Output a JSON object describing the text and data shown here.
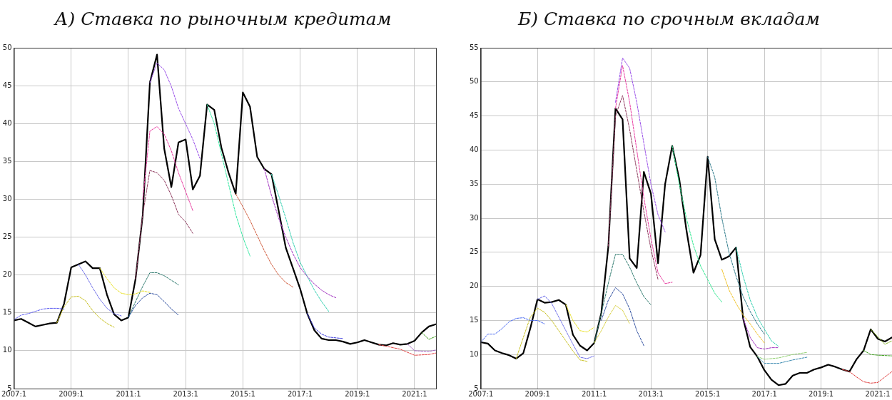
{
  "chart_data": [
    {
      "type": "line",
      "title": "А) Ставка по рыночным кредитам",
      "grid": true,
      "line_style": "solid",
      "marker": "none",
      "xlim": [
        "2007-01",
        "2021-10"
      ],
      "ylim": [
        5,
        50
      ],
      "xticks": [
        {
          "value": "2007-01",
          "label": "2007:1"
        },
        {
          "value": "2009-01",
          "label": "2009:1"
        },
        {
          "value": "2011-01",
          "label": "2011:1"
        },
        {
          "value": "2013-01",
          "label": "2013:1"
        },
        {
          "value": "2015-01",
          "label": "2015:1"
        },
        {
          "value": "2017-01",
          "label": "2017:1"
        },
        {
          "value": "2019-01",
          "label": "2019:1"
        },
        {
          "value": "2021-01",
          "label": "2021:1"
        }
      ],
      "yticks": [
        5,
        10,
        15,
        20,
        25,
        30,
        35,
        40,
        45,
        50
      ],
      "x": [
        "2007-01",
        "2007-04",
        "2007-07",
        "2007-10",
        "2008-01",
        "2008-04",
        "2008-07",
        "2008-10",
        "2009-01",
        "2009-04",
        "2009-07",
        "2009-10",
        "2010-01",
        "2010-04",
        "2010-07",
        "2010-10",
        "2011-01",
        "2011-04",
        "2011-07",
        "2011-10",
        "2012-01",
        "2012-04",
        "2012-07",
        "2012-10",
        "2013-01",
        "2013-04",
        "2013-07",
        "2013-10",
        "2014-01",
        "2014-04",
        "2014-07",
        "2014-10",
        "2015-01",
        "2015-04",
        "2015-07",
        "2015-10",
        "2016-01",
        "2016-04",
        "2016-07",
        "2016-10",
        "2017-01",
        "2017-04",
        "2017-07",
        "2017-10",
        "2018-01",
        "2018-04",
        "2018-07",
        "2018-10",
        "2019-01",
        "2019-04",
        "2019-07",
        "2019-10",
        "2020-01",
        "2020-04",
        "2020-07",
        "2020-10",
        "2021-01",
        "2021-04",
        "2021-07",
        "2021-10"
      ],
      "series": [
        {
          "color": "#5a5af0",
          "line_style": "dashed",
          "x": [
            "2007-01",
            "2007-04",
            "2007-07",
            "2007-10",
            "2008-01",
            "2008-04",
            "2008-07",
            "2008-10"
          ],
          "values": [
            14.1,
            14.7,
            14.9,
            15.2,
            15.5,
            15.6,
            15.6,
            15.5
          ]
        },
        {
          "color": "#c8c020",
          "line_style": "dashed",
          "x": [
            "2008-07",
            "2008-10",
            "2009-01",
            "2009-04",
            "2009-07",
            "2009-10",
            "2010-01",
            "2010-04",
            "2010-07"
          ],
          "values": [
            13.7,
            15.8,
            17.1,
            17.2,
            16.6,
            15.3,
            14.3,
            13.6,
            13.1
          ]
        },
        {
          "color": "#6a6ae8",
          "line_style": "dashed",
          "x": [
            "2009-04",
            "2009-07",
            "2009-10",
            "2010-01",
            "2010-04",
            "2010-07",
            "2010-10"
          ],
          "values": [
            21.4,
            20.0,
            18.3,
            16.8,
            15.6,
            14.9,
            14.6
          ]
        },
        {
          "color": "#e8e020",
          "line_style": "dashed",
          "x": [
            "2010-01",
            "2010-04",
            "2010-07",
            "2010-10",
            "2011-01",
            "2011-04",
            "2011-07",
            "2011-10"
          ],
          "values": [
            20.9,
            19.5,
            18.3,
            17.6,
            17.4,
            17.5,
            17.9,
            17.7
          ]
        },
        {
          "color": "#3050a0",
          "line_style": "dashed",
          "x": [
            "2011-01",
            "2011-04",
            "2011-07",
            "2011-10",
            "2012-01",
            "2012-04",
            "2012-07",
            "2012-10"
          ],
          "values": [
            14.4,
            16.0,
            17.0,
            17.6,
            17.4,
            16.5,
            15.5,
            14.7
          ]
        },
        {
          "color": "#2e7a6e",
          "line_style": "dashed",
          "x": [
            "2011-01",
            "2011-04",
            "2011-07",
            "2011-10",
            "2012-01",
            "2012-04",
            "2012-07",
            "2012-10"
          ],
          "values": [
            14.4,
            16.5,
            18.5,
            20.3,
            20.3,
            19.9,
            19.3,
            18.7
          ]
        },
        {
          "color": "#8e3a5e",
          "line_style": "dashed",
          "x": [
            "2011-04",
            "2011-07",
            "2011-10",
            "2012-01",
            "2012-04",
            "2012-07",
            "2012-10",
            "2013-01",
            "2013-04"
          ],
          "values": [
            19.5,
            28.0,
            33.8,
            33.5,
            32.5,
            30.5,
            28.0,
            27.0,
            25.5
          ]
        },
        {
          "color": "#e83aa0",
          "line_style": "dashed",
          "x": [
            "2011-07",
            "2011-10",
            "2012-01",
            "2012-04",
            "2012-07",
            "2012-10",
            "2013-01",
            "2013-04"
          ],
          "values": [
            30.0,
            39.0,
            39.6,
            38.6,
            36.4,
            33.5,
            31.0,
            28.5
          ]
        },
        {
          "color": "#9a50e8",
          "line_style": "dashed",
          "x": [
            "2011-10",
            "2012-01",
            "2012-04",
            "2012-07",
            "2012-10",
            "2013-04",
            "2013-07"
          ],
          "values": [
            45.4,
            48.0,
            47.1,
            44.9,
            42.0,
            37.9,
            35.4
          ]
        },
        {
          "color": "#30e8a0",
          "line_style": "dashed",
          "x": [
            "2013-10",
            "2014-01",
            "2014-04",
            "2014-07",
            "2014-10",
            "2015-01",
            "2015-04"
          ],
          "values": [
            42.5,
            40.0,
            36.0,
            32.0,
            28.0,
            25.0,
            22.5
          ]
        },
        {
          "color": "#d05a3a",
          "line_style": "dashed",
          "x": [
            "2014-10",
            "2015-01",
            "2015-04",
            "2015-07",
            "2015-10",
            "2016-01",
            "2016-04",
            "2016-07",
            "2016-10"
          ],
          "values": [
            30.7,
            29.0,
            27.2,
            25.2,
            23.2,
            21.4,
            20.0,
            19.0,
            18.4
          ]
        },
        {
          "color": "#a030c0",
          "line_style": "dashed",
          "x": [
            "2015-10",
            "2016-01",
            "2016-04",
            "2016-07",
            "2016-10",
            "2017-01",
            "2017-04",
            "2017-07",
            "2017-10",
            "2018-01",
            "2018-04"
          ],
          "values": [
            34.0,
            30.5,
            27.5,
            25.0,
            22.8,
            21.0,
            19.8,
            18.8,
            18.0,
            17.4,
            17.0
          ]
        },
        {
          "color": "#30d0b0",
          "line_style": "dashed",
          "x": [
            "2016-01",
            "2016-04",
            "2016-07",
            "2016-10",
            "2017-01",
            "2017-04",
            "2017-07",
            "2017-10",
            "2018-01"
          ],
          "values": [
            33.3,
            30.5,
            27.5,
            24.3,
            21.7,
            19.8,
            18.0,
            16.5,
            15.2
          ]
        },
        {
          "color": "#4040e0",
          "line_style": "dashed",
          "x": [
            "2017-04",
            "2017-07",
            "2017-10",
            "2018-01",
            "2018-07"
          ],
          "values": [
            14.9,
            13.0,
            12.2,
            11.8,
            11.6
          ]
        },
        {
          "color": "#e04040",
          "line_style": "dashed",
          "x": [
            "2019-10",
            "2020-07",
            "2021-01",
            "2021-07",
            "2021-10"
          ],
          "values": [
            10.8,
            10.2,
            9.4,
            9.5,
            9.7
          ]
        },
        {
          "color": "#a060c0",
          "line_style": "dashed",
          "x": [
            "2020-10",
            "2021-01",
            "2021-07",
            "2021-10"
          ],
          "values": [
            10.9,
            10.0,
            9.9,
            10.1
          ]
        },
        {
          "color": "#40a020",
          "line_style": "dashed",
          "x": [
            "2021-04",
            "2021-07",
            "2021-10"
          ],
          "values": [
            12.4,
            11.5,
            11.9
          ]
        },
        {
          "color": "#000000",
          "values": [
            14.0,
            14.2,
            13.7,
            13.2,
            13.4,
            13.6,
            13.7,
            16.2,
            21.0,
            21.4,
            21.8,
            20.9,
            20.9,
            17.4,
            14.8,
            14.0,
            14.4,
            19.5,
            27.9,
            45.4,
            49.1,
            36.7,
            31.6,
            37.5,
            37.9,
            31.3,
            33.1,
            42.5,
            41.8,
            36.8,
            33.5,
            30.7,
            44.1,
            42.2,
            35.6,
            34.0,
            33.3,
            28.5,
            23.6,
            20.9,
            18.2,
            14.9,
            12.7,
            11.6,
            11.4,
            11.4,
            11.2,
            10.9,
            11.1,
            11.4,
            11.1,
            10.8,
            10.7,
            11.0,
            10.8,
            10.9,
            11.3,
            12.4,
            13.2,
            13.5
          ]
        }
      ]
    },
    {
      "type": "line",
      "title": "Б) Ставка по срочным вкладам",
      "grid": true,
      "line_style": "solid",
      "marker": "none",
      "xlim": [
        "2007-01",
        "2021-07"
      ],
      "ylim": [
        5,
        55
      ],
      "xticks": [
        {
          "value": "2007-01",
          "label": "2007:1"
        },
        {
          "value": "2009-01",
          "label": "2009:1"
        },
        {
          "value": "2011-01",
          "label": "2011:1"
        },
        {
          "value": "2013-01",
          "label": "2013:1"
        },
        {
          "value": "2015-01",
          "label": "2015:1"
        },
        {
          "value": "2017-01",
          "label": "2017:1"
        },
        {
          "value": "2019-01",
          "label": "2019:1"
        },
        {
          "value": "2021-01",
          "label": "2021:1"
        }
      ],
      "yticks": [
        5,
        10,
        15,
        20,
        25,
        30,
        35,
        40,
        45,
        50,
        55
      ],
      "x": [
        "2007-01",
        "2007-04",
        "2007-07",
        "2007-10",
        "2008-01",
        "2008-04",
        "2008-07",
        "2008-10",
        "2009-01",
        "2009-04",
        "2009-07",
        "2009-10",
        "2010-01",
        "2010-04",
        "2010-07",
        "2010-10",
        "2011-01",
        "2011-04",
        "2011-07",
        "2011-10",
        "2012-01",
        "2012-04",
        "2012-07",
        "2012-10",
        "2013-01",
        "2013-04",
        "2013-07",
        "2013-10",
        "2014-01",
        "2014-04",
        "2014-07",
        "2014-10",
        "2015-01",
        "2015-04",
        "2015-07",
        "2015-10",
        "2016-01",
        "2016-04",
        "2016-07",
        "2016-10",
        "2017-01",
        "2017-04",
        "2017-07",
        "2017-10",
        "2018-01",
        "2018-04",
        "2018-07",
        "2018-10",
        "2019-01",
        "2019-04",
        "2019-07",
        "2019-10",
        "2020-01",
        "2020-04",
        "2020-07",
        "2020-10",
        "2021-01",
        "2021-04",
        "2021-07"
      ],
      "series": [
        {
          "color": "#4a6af0",
          "line_style": "dashed",
          "x": [
            "2007-01",
            "2007-04",
            "2007-07",
            "2007-10",
            "2008-01",
            "2008-04",
            "2008-07",
            "2008-10",
            "2009-01",
            "2009-04"
          ],
          "values": [
            11.8,
            13.0,
            13.0,
            13.8,
            14.8,
            15.3,
            15.4,
            15.0,
            15.0,
            14.5
          ]
        },
        {
          "color": "#c8c020",
          "line_style": "dashed",
          "x": [
            "2008-04",
            "2008-07",
            "2008-10",
            "2009-01",
            "2009-04",
            "2009-07",
            "2009-10",
            "2010-01",
            "2010-04",
            "2010-07",
            "2010-10"
          ],
          "values": [
            9.4,
            12.5,
            15.5,
            16.8,
            16.2,
            15.0,
            13.5,
            12.0,
            10.5,
            9.2,
            9.0
          ]
        },
        {
          "color": "#6a6ae8",
          "line_style": "dashed",
          "x": [
            "2009-01",
            "2009-04",
            "2009-07",
            "2009-10",
            "2010-01",
            "2010-04",
            "2010-07",
            "2010-10",
            "2011-01"
          ],
          "values": [
            18.1,
            18.6,
            17.5,
            15.5,
            13.5,
            11.5,
            9.6,
            9.4,
            9.8
          ]
        },
        {
          "color": "#e8e020",
          "line_style": "dashed",
          "x": [
            "2010-01",
            "2010-04",
            "2010-07",
            "2010-10",
            "2011-01"
          ],
          "values": [
            17.3,
            15.0,
            13.5,
            13.3,
            14.0
          ]
        },
        {
          "color": "#d8d040",
          "line_style": "dashed",
          "x": [
            "2011-01",
            "2011-04",
            "2011-07",
            "2011-10",
            "2012-01",
            "2012-04"
          ],
          "values": [
            11.7,
            13.5,
            15.5,
            17.2,
            16.5,
            14.5
          ]
        },
        {
          "color": "#3050a0",
          "line_style": "dashed",
          "x": [
            "2011-04",
            "2011-07",
            "2011-10",
            "2012-01",
            "2012-04",
            "2012-07",
            "2012-10"
          ],
          "values": [
            15.0,
            18.0,
            19.8,
            18.9,
            16.7,
            13.5,
            11.3
          ]
        },
        {
          "color": "#2e7a6e",
          "line_style": "dashed",
          "x": [
            "2011-01",
            "2011-04",
            "2011-07",
            "2011-10",
            "2012-01",
            "2012-04",
            "2012-07",
            "2012-10",
            "2013-01"
          ],
          "values": [
            11.7,
            16.0,
            20.5,
            24.7,
            24.7,
            22.8,
            20.5,
            18.5,
            17.3
          ]
        },
        {
          "color": "#8e3a5e",
          "line_style": "dashed",
          "x": [
            "2011-07",
            "2011-10",
            "2012-01",
            "2012-04",
            "2012-07",
            "2012-10",
            "2013-01",
            "2013-04"
          ],
          "values": [
            25.9,
            45.0,
            48.0,
            43.0,
            37.0,
            31.0,
            25.5,
            21.0
          ]
        },
        {
          "color": "#e83aa0",
          "line_style": "dashed",
          "x": [
            "2011-10",
            "2012-01",
            "2012-04",
            "2012-07",
            "2012-10",
            "2013-01",
            "2013-04",
            "2013-07",
            "2013-10"
          ],
          "values": [
            46.1,
            52.4,
            47.0,
            40.0,
            33.0,
            27.0,
            22.0,
            20.4,
            20.6
          ]
        },
        {
          "color": "#9a50e8",
          "line_style": "dashed",
          "x": [
            "2011-10",
            "2012-01",
            "2012-04",
            "2012-07",
            "2012-10",
            "2013-01",
            "2013-04",
            "2013-07"
          ],
          "values": [
            47.0,
            53.5,
            52.0,
            47.0,
            41.0,
            35.0,
            30.5,
            28.0
          ]
        },
        {
          "color": "#30e890",
          "line_style": "dashed",
          "x": [
            "2013-10",
            "2014-01",
            "2014-04",
            "2014-07",
            "2014-10",
            "2015-01",
            "2015-04",
            "2015-07"
          ],
          "values": [
            40.6,
            35.0,
            30.0,
            26.0,
            23.0,
            21.0,
            19.0,
            17.7
          ]
        },
        {
          "color": "#2e7a8a",
          "line_style": "dashed",
          "x": [
            "2015-01",
            "2015-04",
            "2015-07",
            "2015-10",
            "2016-01",
            "2016-04",
            "2016-07",
            "2016-10",
            "2017-01"
          ],
          "values": [
            39.0,
            36.0,
            30.0,
            25.0,
            21.5,
            18.5,
            16.3,
            14.5,
            13.0
          ]
        },
        {
          "color": "#f0c020",
          "line_style": "dashed",
          "x": [
            "2015-07",
            "2015-10",
            "2016-01",
            "2016-04",
            "2016-07",
            "2016-10",
            "2017-01"
          ],
          "values": [
            22.5,
            19.5,
            17.5,
            15.8,
            14.5,
            13.0,
            11.7
          ]
        },
        {
          "color": "#30d0b0",
          "line_style": "dashed",
          "x": [
            "2016-01",
            "2016-04",
            "2016-07",
            "2016-10",
            "2017-01",
            "2017-04",
            "2017-07"
          ],
          "values": [
            25.7,
            21.5,
            18.0,
            15.5,
            13.7,
            12.0,
            11.2
          ]
        },
        {
          "color": "#a030c0",
          "line_style": "dashed",
          "x": [
            "2016-04",
            "2016-07",
            "2016-10",
            "2017-01",
            "2017-04",
            "2017-07"
          ],
          "values": [
            15.3,
            12.5,
            11.0,
            10.8,
            11.0,
            11.0
          ]
        },
        {
          "color": "#90d070",
          "line_style": "dashed",
          "x": [
            "2016-10",
            "2017-01",
            "2017-07",
            "2018-01",
            "2018-07"
          ],
          "values": [
            9.7,
            9.3,
            9.5,
            10.0,
            10.3
          ]
        },
        {
          "color": "#3a8ab0",
          "line_style": "dashed",
          "x": [
            "2016-10",
            "2017-01",
            "2017-07",
            "2018-01",
            "2018-07"
          ],
          "values": [
            9.7,
            8.7,
            8.7,
            9.2,
            9.6
          ]
        },
        {
          "color": "#e04040",
          "line_style": "dashed",
          "x": [
            "2019-10",
            "2020-01",
            "2020-04",
            "2020-07",
            "2020-10",
            "2021-01",
            "2021-07"
          ],
          "values": [
            7.8,
            7.5,
            6.7,
            6.0,
            5.8,
            5.9,
            7.5
          ]
        },
        {
          "color": "#40a020",
          "line_style": "dashed",
          "x": [
            "2020-07",
            "2020-10",
            "2021-01",
            "2021-07"
          ],
          "values": [
            10.6,
            10.0,
            9.9,
            9.8
          ]
        },
        {
          "color": "#80b020",
          "line_style": "dashed",
          "x": [
            "2020-10",
            "2021-01",
            "2021-04",
            "2021-07"
          ],
          "values": [
            13.7,
            12.6,
            11.5,
            12.0
          ]
        },
        {
          "color": "#000000",
          "values": [
            11.8,
            11.6,
            10.6,
            10.2,
            9.9,
            9.4,
            10.2,
            13.9,
            18.1,
            17.6,
            17.7,
            18.0,
            17.3,
            12.9,
            11.3,
            10.6,
            11.7,
            16.1,
            25.9,
            46.1,
            44.5,
            24.1,
            22.7,
            36.8,
            33.6,
            23.4,
            35.0,
            40.6,
            35.7,
            28.3,
            22.0,
            24.6,
            39.0,
            26.9,
            23.9,
            24.4,
            25.7,
            15.3,
            11.1,
            9.7,
            7.7,
            6.3,
            5.5,
            5.7,
            6.9,
            7.3,
            7.3,
            7.8,
            8.1,
            8.5,
            8.2,
            7.8,
            7.5,
            9.3,
            10.6,
            13.7,
            12.3,
            11.9,
            12.5
          ]
        }
      ]
    }
  ]
}
